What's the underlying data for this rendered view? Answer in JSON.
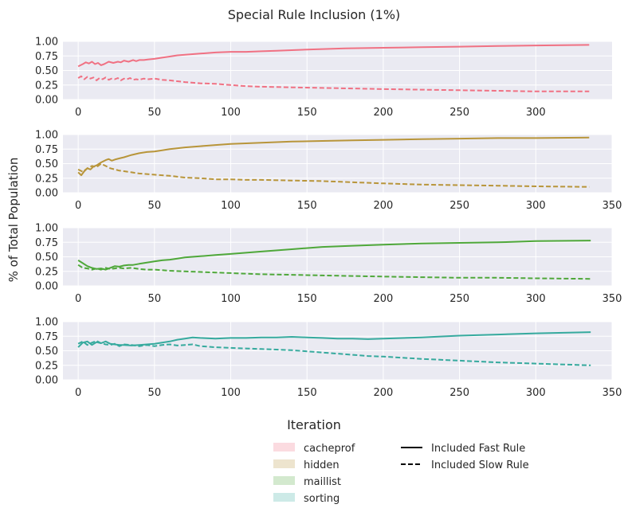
{
  "figure": {
    "title": "Special Rule Inclusion (1%)",
    "ylabel": "% of Total Population",
    "xlabel": "Iteration"
  },
  "chart_data": [
    {
      "type": "line",
      "name": "cacheprof",
      "color": "#f07183",
      "xlim": [
        -10,
        350
      ],
      "ylim": [
        0,
        1
      ],
      "xticks": [
        0,
        50,
        100,
        150,
        200,
        250,
        300
      ],
      "yticks": [
        0,
        0.25,
        0.5,
        0.75,
        1.0
      ],
      "series": [
        {
          "name": "Included Fast Rule",
          "style": "solid",
          "x": [
            0,
            3,
            5,
            7,
            9,
            11,
            13,
            15,
            17,
            20,
            23,
            26,
            28,
            30,
            33,
            36,
            38,
            40,
            43,
            46,
            50,
            55,
            60,
            65,
            70,
            80,
            90,
            100,
            110,
            120,
            130,
            150,
            175,
            200,
            225,
            250,
            275,
            300,
            335
          ],
          "y": [
            0.57,
            0.61,
            0.64,
            0.62,
            0.65,
            0.61,
            0.63,
            0.59,
            0.61,
            0.65,
            0.63,
            0.65,
            0.64,
            0.67,
            0.65,
            0.68,
            0.66,
            0.68,
            0.68,
            0.69,
            0.7,
            0.72,
            0.74,
            0.76,
            0.77,
            0.79,
            0.81,
            0.82,
            0.82,
            0.83,
            0.84,
            0.86,
            0.88,
            0.89,
            0.9,
            0.91,
            0.92,
            0.93,
            0.94
          ]
        },
        {
          "name": "Included Slow Rule",
          "style": "dashed",
          "x": [
            0,
            2,
            4,
            6,
            8,
            10,
            12,
            14,
            16,
            18,
            20,
            22,
            24,
            26,
            28,
            30,
            32,
            34,
            36,
            38,
            40,
            43,
            46,
            50,
            55,
            60,
            70,
            80,
            90,
            100,
            110,
            120,
            140,
            160,
            180,
            200,
            225,
            250,
            275,
            300,
            335
          ],
          "y": [
            0.37,
            0.4,
            0.35,
            0.39,
            0.36,
            0.38,
            0.33,
            0.37,
            0.35,
            0.38,
            0.34,
            0.36,
            0.35,
            0.37,
            0.33,
            0.36,
            0.35,
            0.37,
            0.34,
            0.35,
            0.34,
            0.36,
            0.35,
            0.36,
            0.34,
            0.33,
            0.3,
            0.28,
            0.27,
            0.25,
            0.23,
            0.22,
            0.21,
            0.2,
            0.19,
            0.18,
            0.17,
            0.16,
            0.15,
            0.14,
            0.14
          ]
        }
      ]
    },
    {
      "type": "line",
      "name": "hidden",
      "color": "#b8953a",
      "xlim": [
        -10,
        350
      ],
      "ylim": [
        0,
        1
      ],
      "xticks": [
        0,
        50,
        100,
        150,
        200,
        250,
        300,
        350
      ],
      "yticks": [
        0,
        0.25,
        0.5,
        0.75,
        1.0
      ],
      "series": [
        {
          "name": "Included Fast Rule",
          "style": "solid",
          "x": [
            0,
            2,
            4,
            6,
            8,
            10,
            12,
            15,
            18,
            20,
            22,
            24,
            27,
            30,
            35,
            40,
            45,
            50,
            60,
            70,
            80,
            90,
            100,
            120,
            140,
            160,
            180,
            200,
            225,
            250,
            275,
            300,
            335
          ],
          "y": [
            0.35,
            0.3,
            0.37,
            0.42,
            0.4,
            0.45,
            0.47,
            0.52,
            0.56,
            0.58,
            0.55,
            0.57,
            0.59,
            0.61,
            0.65,
            0.68,
            0.7,
            0.71,
            0.75,
            0.78,
            0.8,
            0.82,
            0.84,
            0.86,
            0.88,
            0.89,
            0.9,
            0.91,
            0.92,
            0.93,
            0.94,
            0.94,
            0.95
          ]
        },
        {
          "name": "Included Slow Rule",
          "style": "dashed",
          "x": [
            0,
            3,
            6,
            9,
            12,
            15,
            18,
            21,
            24,
            27,
            30,
            35,
            40,
            45,
            50,
            60,
            70,
            80,
            90,
            100,
            110,
            120,
            140,
            160,
            180,
            200,
            225,
            250,
            275,
            300,
            335
          ],
          "y": [
            0.4,
            0.36,
            0.42,
            0.46,
            0.44,
            0.5,
            0.46,
            0.42,
            0.4,
            0.38,
            0.37,
            0.35,
            0.33,
            0.32,
            0.31,
            0.29,
            0.26,
            0.25,
            0.23,
            0.23,
            0.22,
            0.22,
            0.21,
            0.2,
            0.18,
            0.16,
            0.14,
            0.13,
            0.12,
            0.11,
            0.1
          ]
        }
      ]
    },
    {
      "type": "line",
      "name": "maillist",
      "color": "#4fa83a",
      "xlim": [
        -10,
        350
      ],
      "ylim": [
        0,
        1
      ],
      "xticks": [
        0,
        50,
        100,
        150,
        200,
        250,
        300,
        350
      ],
      "yticks": [
        0,
        0.25,
        0.5,
        0.75,
        1.0
      ],
      "series": [
        {
          "name": "Included Fast Rule",
          "style": "solid",
          "x": [
            0,
            3,
            6,
            9,
            12,
            15,
            18,
            21,
            24,
            27,
            30,
            33,
            36,
            40,
            45,
            50,
            55,
            60,
            65,
            70,
            80,
            90,
            100,
            110,
            120,
            140,
            160,
            180,
            200,
            225,
            250,
            275,
            300,
            336
          ],
          "y": [
            0.44,
            0.39,
            0.34,
            0.31,
            0.29,
            0.3,
            0.28,
            0.31,
            0.34,
            0.33,
            0.35,
            0.36,
            0.36,
            0.38,
            0.4,
            0.42,
            0.44,
            0.45,
            0.47,
            0.49,
            0.51,
            0.53,
            0.55,
            0.57,
            0.59,
            0.63,
            0.67,
            0.69,
            0.71,
            0.73,
            0.74,
            0.75,
            0.77,
            0.78
          ]
        },
        {
          "name": "Included Slow Rule",
          "style": "dashed",
          "x": [
            0,
            3,
            6,
            9,
            12,
            15,
            18,
            21,
            24,
            27,
            30,
            35,
            40,
            45,
            50,
            60,
            70,
            80,
            90,
            100,
            110,
            120,
            140,
            160,
            180,
            200,
            225,
            250,
            275,
            300,
            336
          ],
          "y": [
            0.36,
            0.31,
            0.3,
            0.28,
            0.3,
            0.28,
            0.31,
            0.29,
            0.3,
            0.31,
            0.3,
            0.31,
            0.29,
            0.28,
            0.28,
            0.26,
            0.25,
            0.24,
            0.23,
            0.22,
            0.21,
            0.2,
            0.19,
            0.18,
            0.17,
            0.16,
            0.15,
            0.14,
            0.14,
            0.13,
            0.12
          ]
        }
      ]
    },
    {
      "type": "line",
      "name": "sorting",
      "color": "#36aa9e",
      "xlim": [
        -10,
        350
      ],
      "ylim": [
        0,
        1
      ],
      "xticks": [
        0,
        50,
        100,
        150,
        200,
        250,
        300,
        350
      ],
      "yticks": [
        0,
        0.25,
        0.5,
        0.75,
        1.0
      ],
      "series": [
        {
          "name": "Included Fast Rule",
          "style": "solid",
          "x": [
            0,
            3,
            6,
            9,
            12,
            15,
            18,
            21,
            24,
            27,
            30,
            35,
            40,
            45,
            50,
            55,
            60,
            65,
            70,
            75,
            80,
            90,
            100,
            110,
            120,
            130,
            140,
            150,
            160,
            170,
            180,
            190,
            200,
            225,
            250,
            275,
            300,
            336
          ],
          "y": [
            0.56,
            0.64,
            0.66,
            0.6,
            0.65,
            0.63,
            0.66,
            0.62,
            0.61,
            0.6,
            0.6,
            0.59,
            0.6,
            0.61,
            0.62,
            0.64,
            0.66,
            0.69,
            0.71,
            0.73,
            0.72,
            0.71,
            0.72,
            0.72,
            0.73,
            0.73,
            0.74,
            0.73,
            0.72,
            0.71,
            0.71,
            0.7,
            0.71,
            0.73,
            0.76,
            0.78,
            0.8,
            0.82
          ]
        },
        {
          "name": "Included Slow Rule",
          "style": "dashed",
          "x": [
            0,
            3,
            6,
            9,
            12,
            15,
            18,
            21,
            24,
            27,
            30,
            35,
            40,
            45,
            50,
            55,
            60,
            65,
            70,
            75,
            80,
            90,
            100,
            110,
            120,
            130,
            140,
            150,
            160,
            170,
            180,
            190,
            200,
            225,
            250,
            275,
            300,
            336
          ],
          "y": [
            0.62,
            0.66,
            0.6,
            0.64,
            0.67,
            0.63,
            0.61,
            0.6,
            0.62,
            0.58,
            0.61,
            0.6,
            0.58,
            0.6,
            0.58,
            0.6,
            0.61,
            0.59,
            0.6,
            0.61,
            0.58,
            0.56,
            0.55,
            0.54,
            0.53,
            0.52,
            0.51,
            0.49,
            0.47,
            0.45,
            0.43,
            0.41,
            0.4,
            0.36,
            0.33,
            0.3,
            0.28,
            0.25
          ]
        }
      ]
    }
  ],
  "legend": {
    "categories": [
      {
        "label": "cacheprof",
        "color": "#f07183"
      },
      {
        "label": "hidden",
        "color": "#b8953a"
      },
      {
        "label": "maillist",
        "color": "#4fa83a"
      },
      {
        "label": "sorting",
        "color": "#36aa9e"
      }
    ],
    "styles": [
      {
        "label": "Included Fast Rule",
        "style": "solid"
      },
      {
        "label": "Included Slow Rule",
        "style": "dashed"
      }
    ]
  }
}
